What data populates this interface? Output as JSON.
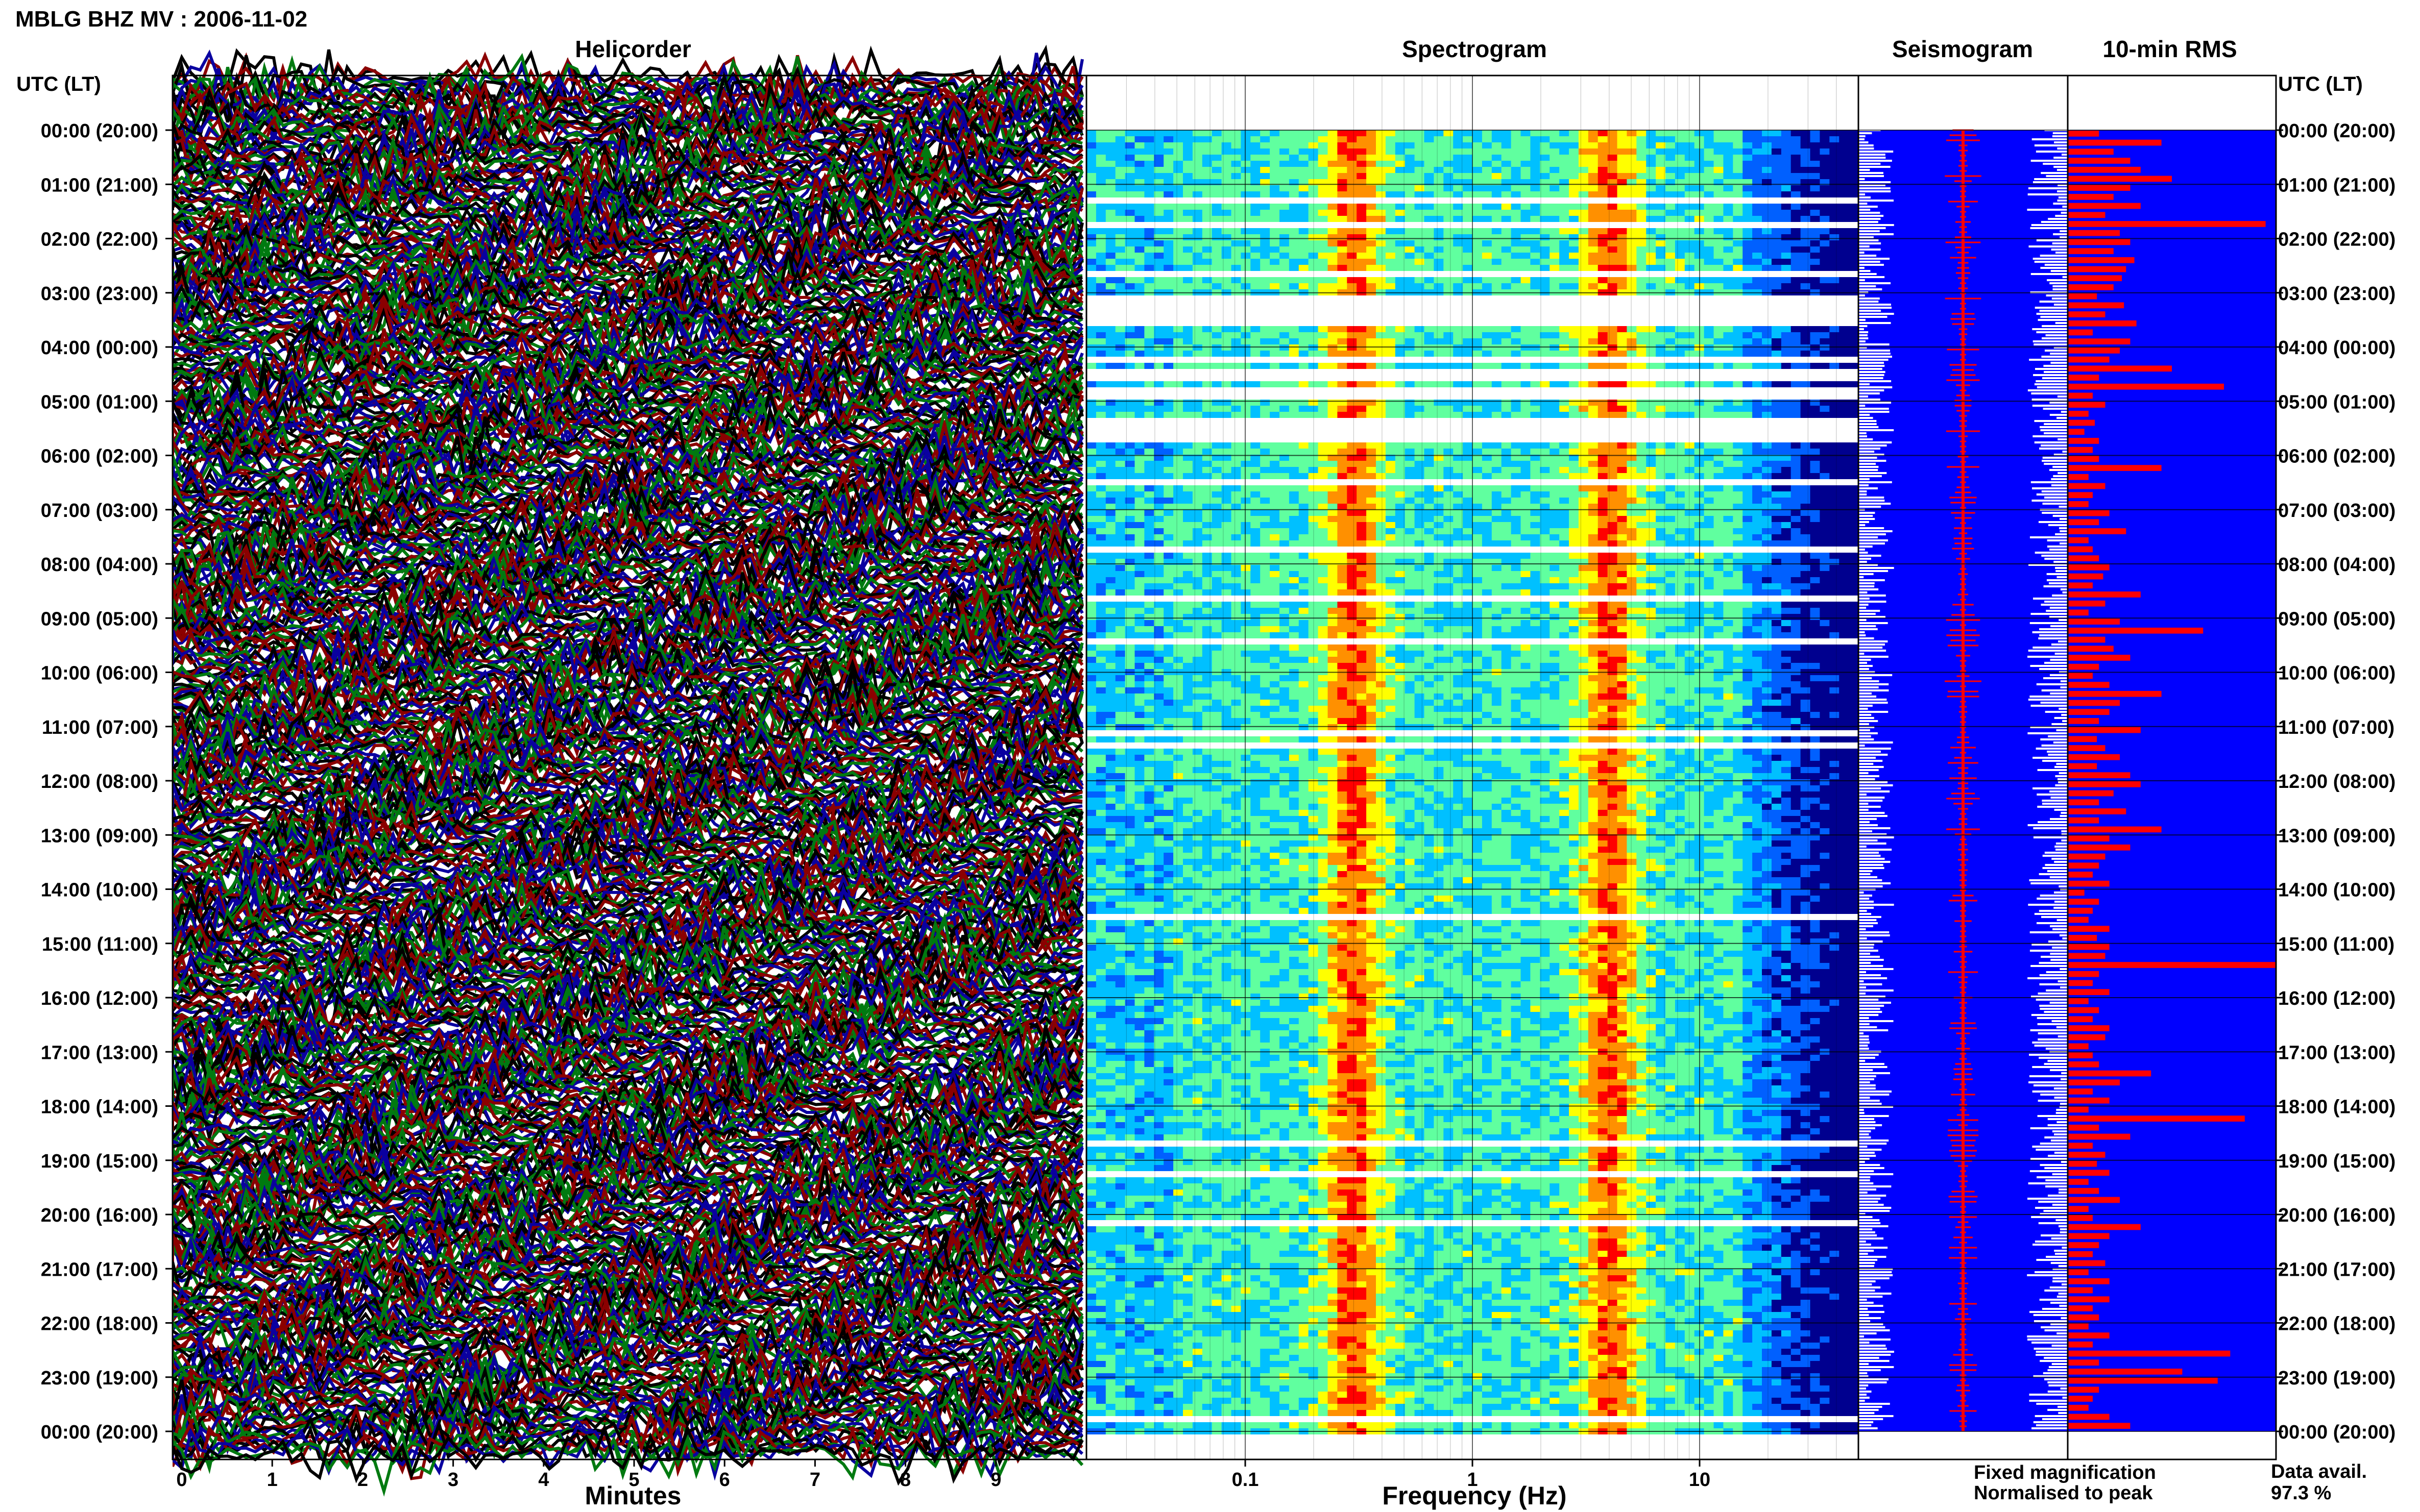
{
  "page_title": "MBLG BHZ MV : 2006-11-02",
  "colors": {
    "heli": [
      "#000000",
      "#8b0000",
      "#0a00a0",
      "#007a10"
    ],
    "seis_bg": "#0000ff",
    "rms_bar": "#ff0000",
    "fixed_text": "#1a1aff",
    "peak_text": "#ff0000",
    "spectro_scale": [
      "#00008f",
      "#0060ff",
      "#00c0ff",
      "#60ff9f",
      "#ffff00",
      "#ff9000",
      "#ff0000"
    ]
  },
  "chart_data": [
    {
      "type": "heatmap",
      "title": "Helicorder",
      "xlabel": "Minutes",
      "x_ticks": [
        "0",
        "1",
        "2",
        "3",
        "4",
        "5",
        "6",
        "7",
        "8",
        "9"
      ],
      "xlim": [
        0,
        10
      ],
      "left_axis_label": "UTC (LT)",
      "row_labels": [
        "00:00 (20:00)",
        "01:00 (21:00)",
        "02:00 (22:00)",
        "03:00 (23:00)",
        "04:00 (00:00)",
        "05:00 (01:00)",
        "06:00 (02:00)",
        "07:00 (03:00)",
        "08:00 (04:00)",
        "09:00 (05:00)",
        "10:00 (06:00)",
        "11:00 (07:00)",
        "12:00 (08:00)",
        "13:00 (09:00)",
        "14:00 (10:00)",
        "15:00 (11:00)",
        "16:00 (12:00)",
        "17:00 (13:00)",
        "18:00 (14:00)",
        "19:00 (15:00)",
        "20:00 (16:00)",
        "21:00 (17:00)",
        "22:00 (18:00)",
        "23:00 (19:00)",
        "00:00 (20:00)"
      ]
    },
    {
      "type": "heatmap",
      "title": "Spectrogram",
      "xlabel": "Frequency (Hz)",
      "x_scale": "log",
      "xlim": [
        0.02,
        50
      ],
      "x_ticks": [
        {
          "v": 0.1,
          "label": "0.1"
        },
        {
          "v": 1,
          "label": "1"
        },
        {
          "v": 10,
          "label": "10"
        }
      ],
      "peak_bands_hz": [
        0.3,
        4
      ]
    },
    {
      "type": "line",
      "title": "Seismogram",
      "legend": [
        {
          "name": "Fixed magnification",
          "color": "#1a1aff"
        },
        {
          "name": "Normalised to peak",
          "color": "#ff0000"
        }
      ]
    },
    {
      "type": "bar",
      "title": "10-min RMS",
      "right_axis_label": "UTC (LT)",
      "rms_relative": [
        0.15,
        0.45,
        0.22,
        0.3,
        0.35,
        0.5,
        0.3,
        0.22,
        0.35,
        0.18,
        0.95,
        0.25,
        0.3,
        0.22,
        0.32,
        0.28,
        0.26,
        0.22,
        0.14,
        0.27,
        0.18,
        0.33,
        0.12,
        0.3,
        0.25,
        0.2,
        0.5,
        0.15,
        0.75,
        0.12,
        0.18,
        0.1,
        0.13,
        0.08,
        0.15,
        0.12,
        0.15,
        0.45,
        0.1,
        0.18,
        0.12,
        0.1,
        0.2,
        0.15,
        0.28,
        0.1,
        0.12,
        0.15,
        0.2,
        0.17,
        0.12,
        0.35,
        0.18,
        0.1,
        0.25,
        0.65,
        0.18,
        0.22,
        0.3,
        0.15,
        0.12,
        0.2,
        0.45,
        0.25,
        0.2,
        0.15,
        0.35,
        0.14,
        0.18,
        0.25,
        0.14,
        0.3,
        0.35,
        0.22,
        0.15,
        0.28,
        0.15,
        0.45,
        0.2,
        0.3,
        0.18,
        0.15,
        0.12,
        0.2,
        0.08,
        0.15,
        0.12,
        0.1,
        0.2,
        0.14,
        0.2,
        0.18,
        1.0,
        0.15,
        0.12,
        0.2,
        0.1,
        0.15,
        0.12,
        0.2,
        0.18,
        0.1,
        0.12,
        0.15,
        0.4,
        0.25,
        0.12,
        0.2,
        0.1,
        0.85,
        0.15,
        0.3,
        0.12,
        0.18,
        0.14,
        0.2,
        0.1,
        0.15,
        0.25,
        0.1,
        0.12,
        0.35,
        0.2,
        0.15,
        0.12,
        0.18,
        0.1,
        0.2,
        0.12,
        0.2,
        0.12,
        0.15,
        0.1,
        0.2,
        0.12,
        0.78,
        0.15,
        0.55,
        0.72,
        0.15,
        0.12,
        0.1,
        0.2,
        0.3,
        0.15,
        0.12,
        0.2,
        0.18,
        0.1,
        0.15,
        0.12,
        0.18,
        0.2,
        0.25,
        0.15,
        0.12,
        0.45,
        0.15,
        0.12,
        0.18,
        0.1,
        0.15,
        0.12,
        0.12,
        0.2,
        0.1,
        0.15,
        0.12,
        0.18,
        0.15,
        0.12,
        0.2,
        0.15,
        0.1,
        0.25,
        0.12,
        0.15,
        0.2,
        0.1,
        0.35,
        0.2,
        0.15,
        0.12,
        0.3,
        0.18,
        0.15,
        0.12,
        0.1,
        0.2,
        0.15,
        0.12,
        0.2,
        0.15,
        0.12,
        0.1,
        0.18,
        0.15,
        0.1,
        0.12,
        0.2,
        0.15,
        0.1,
        0.12,
        0.15,
        0.1,
        0.12,
        0.15,
        0.12,
        0.1,
        0.2,
        0.15,
        0.12,
        0.1,
        0.15,
        0.1,
        0.12,
        0.08,
        0.12,
        0.1,
        0.15,
        0.12,
        0.1,
        0.08,
        0.12,
        0.1,
        0.15,
        0.12,
        0.1,
        0.12,
        0.1,
        0.15,
        0.12,
        0.1,
        0.08,
        0.12,
        0.1,
        0.15,
        0.12,
        0.1,
        0.12,
        0.1,
        0.08,
        0.12,
        0.1,
        0.15,
        0.12,
        0.1,
        0.08,
        0.12,
        0.1,
        0.12,
        0.1,
        0.08,
        0.12,
        0.1,
        0.08,
        0.12,
        0.1,
        0.12,
        0.1,
        0.08,
        0.12,
        0.1,
        0.12,
        0.08,
        0.1,
        0.12,
        0.1,
        0.08,
        0.12,
        0.1,
        0.12,
        0.08,
        0.1,
        0.12,
        0.1,
        0.08,
        0.12,
        0.1,
        0.08,
        0.12,
        0.1,
        0.12,
        0.08,
        0.1,
        0.12,
        0.1,
        0.08,
        0.12,
        0.1,
        0.08,
        0.12,
        0.1,
        0.12,
        0.08,
        0.1,
        0.12,
        0.1,
        0.08,
        0.12,
        0.1,
        0.08,
        0.12,
        0.1,
        0.12,
        0.08,
        0.1,
        0.12,
        0.1,
        0.08,
        0.12,
        0.1,
        0.08,
        0.12,
        0.1,
        0.12,
        0.08,
        0.1,
        0.12,
        0.1,
        0.08,
        0.12,
        0.1
      ]
    }
  ],
  "data_avail": {
    "label": "Data avail.",
    "value": "97.3 %"
  }
}
